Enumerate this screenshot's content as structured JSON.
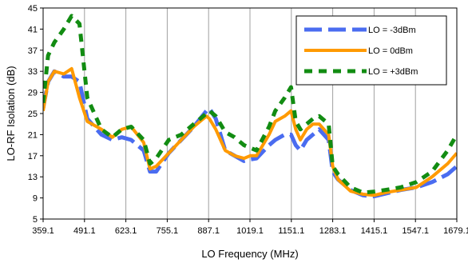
{
  "chart_data": {
    "type": "line",
    "xlabel": "LO Frequency (MHz)",
    "ylabel": "LO-RF Isolation (dB)",
    "xlim": [
      359.1,
      1679.1
    ],
    "ylim": [
      5,
      45
    ],
    "x_ticks": [
      "359.1",
      "491.1",
      "623.1",
      "755.1",
      "887.1",
      "1019.1",
      "1151.1",
      "1283.1",
      "1415.1",
      "1547.1",
      "1679.1"
    ],
    "y_ticks": [
      "5",
      "9",
      "13",
      "17",
      "21",
      "25",
      "29",
      "33",
      "37",
      "41",
      "45"
    ],
    "grid": "vertical",
    "legend_position": "top-right",
    "series": [
      {
        "name": "LO = -3dBm",
        "color": "#4a6cf0",
        "style": "dash",
        "x": [
          359.1,
          375,
          395,
          425,
          450,
          475,
          500,
          545,
          580,
          610,
          640,
          680,
          700,
          720,
          760,
          800,
          840,
          880,
          890,
          910,
          940,
          970,
          1000,
          1020,
          1040,
          1080,
          1100,
          1130,
          1150,
          1165,
          1180,
          1200,
          1220,
          1240,
          1270,
          1283,
          1300,
          1340,
          1380,
          1415,
          1450,
          1500,
          1550,
          1600,
          1650,
          1679.1
        ],
        "y": [
          26,
          31,
          33,
          32,
          32,
          31,
          24,
          21,
          20,
          20.5,
          20,
          18,
          14,
          14,
          17.5,
          20,
          22.5,
          25.5,
          26,
          24,
          18,
          17,
          16,
          16.3,
          16.5,
          19,
          20,
          21,
          21,
          19,
          18,
          20,
          21,
          22,
          20,
          14,
          12.5,
          10.5,
          9.5,
          9.3,
          9.8,
          10.5,
          11,
          12,
          13.5,
          15
        ]
      },
      {
        "name": "LO =  0dBm",
        "color": "#ff9a00",
        "style": "solid",
        "x": [
          359.1,
          375,
          395,
          425,
          450,
          475,
          500,
          545,
          580,
          610,
          640,
          680,
          700,
          720,
          760,
          800,
          840,
          880,
          890,
          910,
          940,
          970,
          1000,
          1020,
          1040,
          1080,
          1100,
          1130,
          1150,
          1165,
          1180,
          1200,
          1220,
          1240,
          1270,
          1283,
          1300,
          1340,
          1380,
          1415,
          1450,
          1500,
          1550,
          1600,
          1650,
          1679.1
        ],
        "y": [
          25.5,
          31,
          33,
          32.5,
          33.5,
          28,
          23.5,
          22,
          20.5,
          22,
          22.5,
          19.5,
          14.5,
          15,
          17.5,
          20,
          22.5,
          24.5,
          24,
          22,
          18,
          17,
          16.5,
          17,
          17,
          21,
          23.5,
          24.5,
          25.5,
          22,
          20,
          22,
          23,
          23,
          21,
          15,
          12.5,
          10.3,
          9.7,
          9.5,
          10,
          10.5,
          11,
          13,
          15.5,
          17.5
        ]
      },
      {
        "name": "LO = +3dBm",
        "color": "#128c12",
        "style": "dash",
        "x": [
          359.1,
          375,
          395,
          425,
          450,
          475,
          500,
          545,
          580,
          610,
          640,
          680,
          700,
          720,
          760,
          800,
          840,
          880,
          890,
          910,
          940,
          970,
          1000,
          1020,
          1040,
          1080,
          1100,
          1130,
          1150,
          1165,
          1180,
          1200,
          1220,
          1240,
          1270,
          1283,
          1300,
          1340,
          1380,
          1415,
          1450,
          1500,
          1550,
          1600,
          1650,
          1679.1
        ],
        "y": [
          27,
          36,
          38.5,
          41,
          43.5,
          42,
          28,
          22,
          20.5,
          22,
          22.5,
          20,
          15.5,
          16.5,
          20,
          21,
          23,
          25,
          25.5,
          24.5,
          21.5,
          20.5,
          19,
          18.5,
          18,
          22.5,
          25.5,
          28,
          30,
          23.5,
          22,
          23,
          24,
          24.5,
          23,
          15,
          13.5,
          11,
          10,
          10.2,
          10.5,
          11,
          12,
          14,
          18,
          21
        ]
      }
    ]
  }
}
